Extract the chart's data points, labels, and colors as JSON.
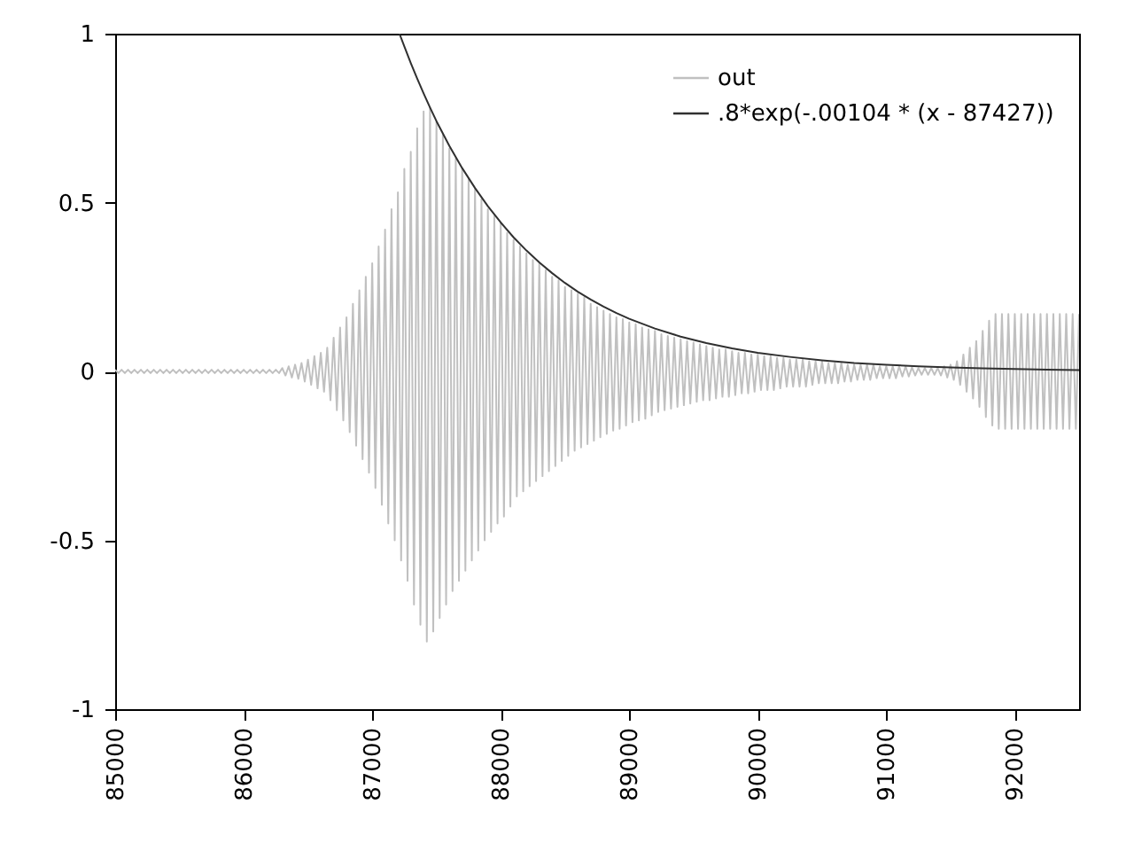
{
  "chart_data": {
    "type": "line",
    "xlim": [
      85000,
      92500
    ],
    "xticks": [
      85000,
      86000,
      87000,
      88000,
      89000,
      90000,
      91000,
      92000
    ],
    "ylim": [
      -1,
      1
    ],
    "yticks": [
      -1,
      -0.5,
      0,
      0.5,
      1
    ],
    "legend": "top right",
    "series": [
      {
        "name": "out",
        "color": "#c0c0c0",
        "x": [
          85000,
          85025,
          85050,
          85075,
          85100,
          85125,
          85150,
          85175,
          85200,
          85225,
          85250,
          85275,
          85300,
          85325,
          85350,
          85375,
          85400,
          85425,
          85450,
          85475,
          85500,
          85525,
          85550,
          85575,
          85600,
          85625,
          85650,
          85675,
          85700,
          85725,
          85750,
          85775,
          85800,
          85825,
          85850,
          85875,
          85900,
          85925,
          85950,
          85975,
          86000,
          86025,
          86050,
          86075,
          86100,
          86125,
          86150,
          86175,
          86200,
          86225,
          86250,
          86275,
          86300,
          86325,
          86350,
          86375,
          86400,
          86425,
          86450,
          86475,
          86500,
          86525,
          86550,
          86575,
          86600,
          86625,
          86650,
          86675,
          86700,
          86725,
          86750,
          86775,
          86800,
          86825,
          86850,
          86875,
          86900,
          86925,
          86950,
          86975,
          87000,
          87025,
          87050,
          87075,
          87100,
          87125,
          87150,
          87175,
          87200,
          87225,
          87250,
          87275,
          87300,
          87325,
          87350,
          87375,
          87400,
          87425,
          87450,
          87475,
          87500,
          87525,
          87550,
          87575,
          87600,
          87625,
          87650,
          87675,
          87700,
          87725,
          87750,
          87775,
          87800,
          87825,
          87850,
          87875,
          87900,
          87925,
          87950,
          87975,
          88000,
          88025,
          88050,
          88075,
          88100,
          88125,
          88150,
          88175,
          88200,
          88225,
          88250,
          88275,
          88300,
          88325,
          88350,
          88375,
          88400,
          88425,
          88450,
          88475,
          88500,
          88525,
          88550,
          88575,
          88600,
          88625,
          88650,
          88675,
          88700,
          88725,
          88750,
          88775,
          88800,
          88825,
          88850,
          88875,
          88900,
          88925,
          88950,
          88975,
          89000,
          89025,
          89050,
          89075,
          89100,
          89125,
          89150,
          89175,
          89200,
          89225,
          89250,
          89275,
          89300,
          89325,
          89350,
          89375,
          89400,
          89425,
          89450,
          89475,
          89500,
          89525,
          89550,
          89575,
          89600,
          89625,
          89650,
          89675,
          89700,
          89725,
          89750,
          89775,
          89800,
          89825,
          89850,
          89875,
          89900,
          89925,
          89950,
          89975,
          90000,
          90025,
          90050,
          90075,
          90100,
          90125,
          90150,
          90175,
          90200,
          90225,
          90250,
          90275,
          90300,
          90325,
          90350,
          90375,
          90400,
          90425,
          90450,
          90475,
          90500,
          90525,
          90550,
          90575,
          90600,
          90625,
          90650,
          90675,
          90700,
          90725,
          90750,
          90775,
          90800,
          90825,
          90850,
          90875,
          90900,
          90925,
          90950,
          90975,
          91000,
          91025,
          91050,
          91075,
          91100,
          91125,
          91150,
          91175,
          91200,
          91225,
          91250,
          91275,
          91300,
          91325,
          91350,
          91375,
          91400,
          91425,
          91450,
          91475,
          91500,
          91525,
          91550,
          91575,
          91600,
          91625,
          91650,
          91675,
          91700,
          91725,
          91750,
          91775,
          91800,
          91825,
          91850,
          91875,
          91900,
          91925,
          91950,
          91975,
          92000,
          92025,
          92050,
          92075,
          92100,
          92125,
          92150,
          92175,
          92200,
          92225,
          92250,
          92275,
          92300,
          92325,
          92350,
          92375,
          92400,
          92425,
          92450,
          92475,
          92500
        ],
        "values": [
          0.005,
          -0.005,
          0.005,
          -0.005,
          0.005,
          -0.005,
          0.005,
          -0.005,
          0.005,
          -0.005,
          0.005,
          -0.005,
          0.005,
          -0.005,
          0.005,
          -0.005,
          0.005,
          -0.005,
          0.005,
          -0.005,
          0.005,
          -0.005,
          0.005,
          -0.005,
          0.005,
          -0.005,
          0.005,
          -0.005,
          0.005,
          -0.005,
          0.005,
          -0.005,
          0.005,
          -0.005,
          0.005,
          -0.005,
          0.005,
          -0.005,
          0.005,
          -0.005,
          0.005,
          -0.005,
          0.005,
          -0.005,
          0.005,
          -0.005,
          0.005,
          -0.005,
          0.005,
          -0.005,
          0.005,
          -0.005,
          0.01,
          -0.012,
          0.015,
          -0.018,
          0.02,
          -0.022,
          0.025,
          -0.03,
          0.035,
          -0.04,
          0.045,
          -0.05,
          0.055,
          -0.06,
          0.07,
          -0.085,
          0.1,
          -0.115,
          0.13,
          -0.145,
          0.16,
          -0.18,
          0.2,
          -0.22,
          0.24,
          -0.26,
          0.28,
          -0.3,
          0.32,
          -0.345,
          0.37,
          -0.395,
          0.42,
          -0.45,
          0.48,
          -0.5,
          0.53,
          -0.56,
          0.6,
          -0.62,
          0.65,
          -0.69,
          0.72,
          -0.75,
          0.77,
          -0.8,
          0.78,
          -0.77,
          0.74,
          -0.73,
          0.7,
          -0.69,
          0.66,
          -0.65,
          0.63,
          -0.62,
          0.6,
          -0.59,
          0.57,
          -0.56,
          0.54,
          -0.53,
          0.51,
          -0.5,
          0.48,
          -0.475,
          0.46,
          -0.45,
          0.44,
          -0.43,
          0.41,
          -0.4,
          0.39,
          -0.37,
          0.37,
          -0.355,
          0.35,
          -0.34,
          0.33,
          -0.325,
          0.32,
          -0.31,
          0.3,
          -0.295,
          0.28,
          -0.28,
          0.27,
          -0.265,
          0.25,
          -0.25,
          0.24,
          -0.235,
          0.23,
          -0.225,
          0.22,
          -0.215,
          0.2,
          -0.205,
          0.19,
          -0.195,
          0.18,
          -0.185,
          0.17,
          -0.175,
          0.16,
          -0.17,
          0.155,
          -0.16,
          0.145,
          -0.15,
          0.14,
          -0.145,
          0.13,
          -0.14,
          0.125,
          -0.13,
          0.12,
          -0.12,
          0.11,
          -0.115,
          0.105,
          -0.11,
          0.1,
          -0.105,
          0.095,
          -0.1,
          0.09,
          -0.095,
          0.085,
          -0.09,
          0.08,
          -0.085,
          0.075,
          -0.085,
          0.07,
          -0.08,
          0.065,
          -0.075,
          0.065,
          -0.075,
          0.06,
          -0.07,
          0.055,
          -0.065,
          0.055,
          -0.065,
          0.05,
          -0.06,
          0.05,
          -0.055,
          0.045,
          -0.055,
          0.045,
          -0.055,
          0.04,
          -0.05,
          0.04,
          -0.045,
          0.035,
          -0.045,
          0.035,
          -0.045,
          0.035,
          -0.045,
          0.03,
          -0.04,
          0.03,
          -0.035,
          0.03,
          -0.035,
          0.025,
          -0.035,
          0.025,
          -0.035,
          0.025,
          -0.03,
          0.02,
          -0.03,
          0.02,
          -0.025,
          0.02,
          -0.025,
          0.02,
          -0.025,
          0.02,
          -0.02,
          0.015,
          -0.02,
          0.015,
          -0.02,
          0.015,
          -0.02,
          0.015,
          -0.015,
          0.015,
          -0.015,
          0.012,
          -0.012,
          0.01,
          -0.01,
          0.01,
          -0.01,
          0.01,
          -0.01,
          0.01,
          -0.012,
          0.015,
          -0.018,
          0.02,
          -0.025,
          0.03,
          -0.04,
          0.05,
          -0.06,
          0.07,
          -0.08,
          0.09,
          -0.105,
          0.12,
          -0.135,
          0.15,
          -0.16,
          0.17,
          -0.17,
          0.17,
          -0.17,
          0.17,
          -0.17,
          0.17,
          -0.17,
          0.17,
          -0.17,
          0.17,
          -0.17,
          0.17,
          -0.17,
          0.17,
          -0.17,
          0.17,
          -0.17,
          0.17,
          -0.17,
          0.17,
          -0.17,
          0.17,
          -0.17,
          0.17,
          -0.17,
          0.17
        ]
      },
      {
        "name": ".8*exp(-.00104 * (x - 87427))",
        "color": "#303030",
        "x": [
          87212,
          87250,
          87300,
          87350,
          87400,
          87450,
          87500,
          87600,
          87700,
          87800,
          87900,
          88000,
          88100,
          88200,
          88300,
          88400,
          88500,
          88600,
          88700,
          88800,
          88900,
          89000,
          89200,
          89400,
          89600,
          89800,
          90000,
          90250,
          90500,
          90750,
          91000,
          91250,
          91500,
          91750,
          92000,
          92250,
          92500
        ],
        "values": [
          1.0,
          0.962,
          0.913,
          0.867,
          0.823,
          0.781,
          0.741,
          0.668,
          0.602,
          0.543,
          0.489,
          0.441,
          0.397,
          0.358,
          0.323,
          0.291,
          0.262,
          0.236,
          0.213,
          0.192,
          0.173,
          0.156,
          0.127,
          0.103,
          0.084,
          0.068,
          0.055,
          0.043,
          0.033,
          0.025,
          0.02,
          0.015,
          0.012,
          0.009,
          0.007,
          0.005,
          0.004
        ]
      }
    ]
  }
}
